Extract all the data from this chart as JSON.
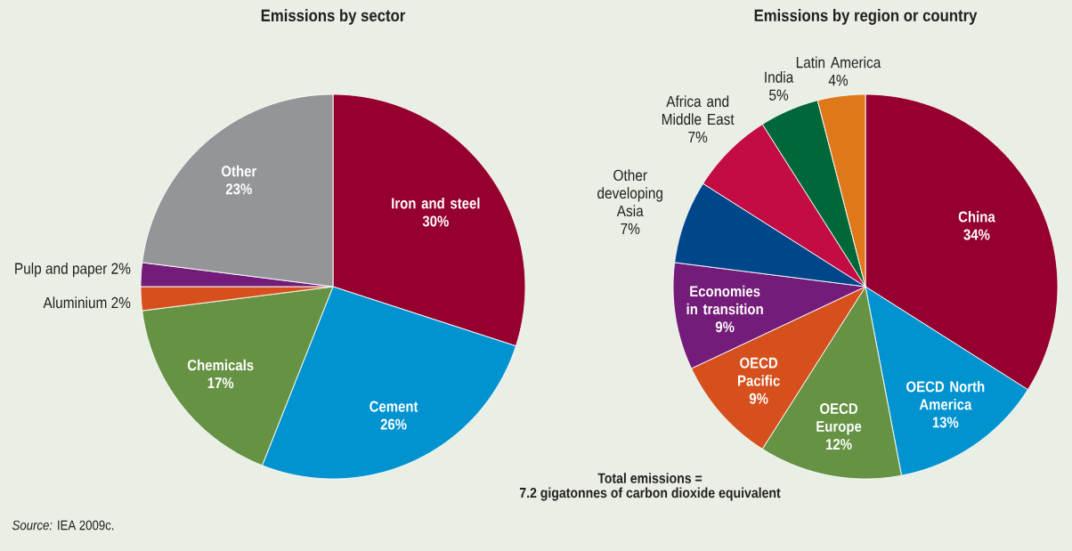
{
  "chart_data": [
    {
      "type": "pie",
      "title": "Emissions by sector",
      "categories": [
        "Iron and steel",
        "Cement",
        "Chemicals",
        "Aluminium",
        "Pulp and paper",
        "Other"
      ],
      "values": [
        30,
        26,
        17,
        2,
        2,
        23
      ],
      "value_labels": [
        "30%",
        "26%",
        "17%",
        "2%",
        "2%",
        "23%"
      ],
      "colors": [
        "#96002e",
        "#0093d0",
        "#669244",
        "#d6501d",
        "#741c79",
        "#939598"
      ],
      "annotations": [
        "*Source:* IEA 2009c."
      ]
    },
    {
      "type": "pie",
      "title": "Emissions by region or country",
      "categories": [
        "China",
        "OECD North America",
        "OECD Europe",
        "OECD Pacific",
        "Economies in transition",
        "Other developing Asia",
        "Africa and Middle East",
        "India",
        "Latin America"
      ],
      "values": [
        34,
        13,
        12,
        9,
        9,
        7,
        7,
        5,
        4
      ],
      "value_labels": [
        "34%",
        "13%",
        "12%",
        "9%",
        "9%",
        "7%",
        "7%",
        "5%",
        "4%"
      ],
      "colors": [
        "#96002e",
        "#0093d0",
        "#669244",
        "#d6501d",
        "#741c79",
        "#00468b",
        "#c20c43",
        "#006838",
        "#de781b"
      ],
      "annotations": [
        "Total emissions =",
        "7.2 gigatonnes of carbon dioxide equivalent"
      ]
    }
  ]
}
